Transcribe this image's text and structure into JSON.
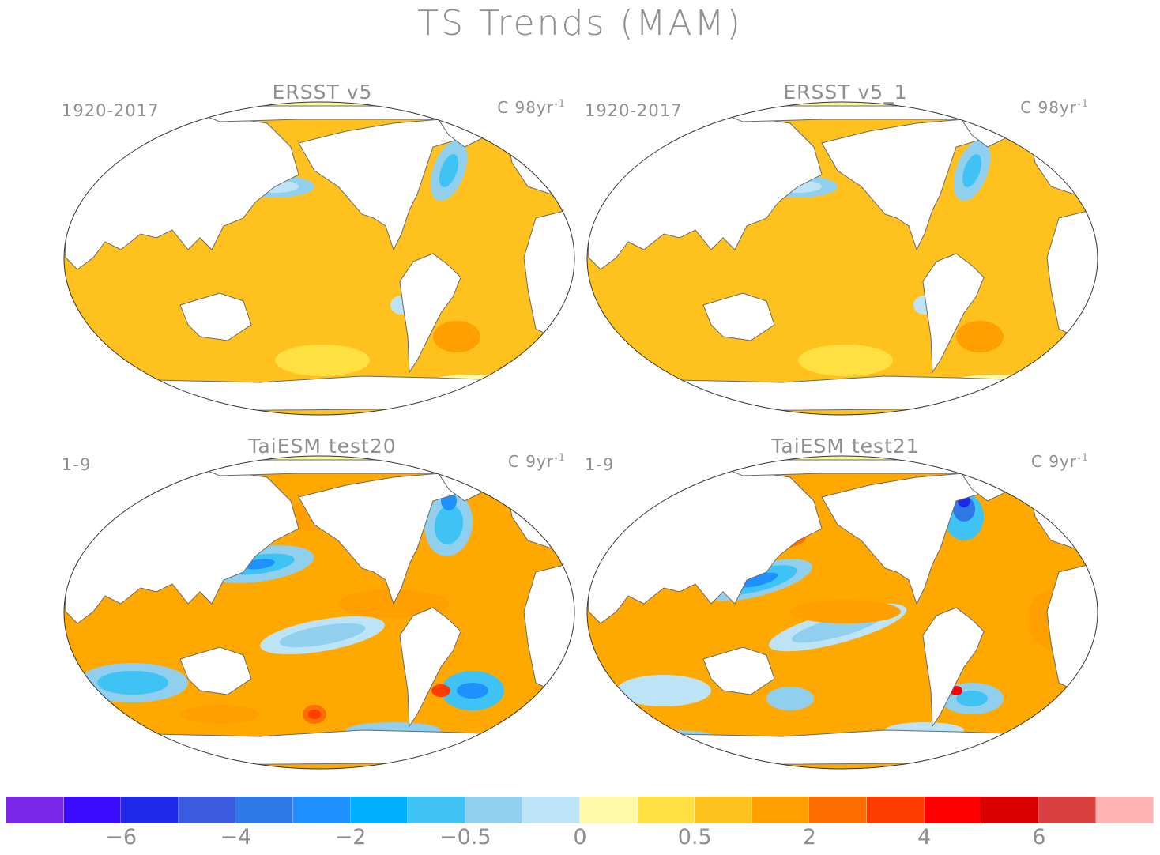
{
  "title": "TS Trends (MAM)",
  "panels": [
    {
      "title": "ERSST v5",
      "period": "1920-2017",
      "units_main": "C 98yr",
      "units_exp": "-1",
      "style": "obs"
    },
    {
      "title": "ERSST v5_1",
      "period": "1920-2017",
      "units_main": "C 98yr",
      "units_exp": "-1",
      "style": "obs"
    },
    {
      "title": "TaiESM test20",
      "period": "1-9",
      "units_main": "C 9yr",
      "units_exp": "-1",
      "style": "model1"
    },
    {
      "title": "TaiESM test21",
      "period": "1-9",
      "units_main": "C 9yr",
      "units_exp": "-1",
      "style": "model2"
    }
  ],
  "colorbar": {
    "colors": [
      "#7b26e8",
      "#3b0bff",
      "#1f28e8",
      "#3a5ae0",
      "#2f78e8",
      "#1e90ff",
      "#00b0ff",
      "#3fc3f5",
      "#90d0ee",
      "#bde3f6",
      "#fff8a6",
      "#ffe040",
      "#ffc11e",
      "#ff9f00",
      "#ff6e00",
      "#ff3c00",
      "#ff0000",
      "#d80000",
      "#d84040",
      "#ffb4b4"
    ],
    "labels": [
      "−6",
      "−4",
      "−2",
      "−0.5",
      "0",
      "0.5",
      "2",
      "4",
      "6"
    ]
  },
  "chart_data": {
    "type": "heatmap",
    "title": "TS Trends (MAM)",
    "projection": "Robinson (global map)",
    "colorbar_levels": [
      "<-6",
      "-6",
      "-5",
      "-4",
      "-3",
      "-2",
      "-1",
      "-0.5",
      "-0.25",
      "0",
      "0.25",
      "0.5",
      "1",
      "2",
      "3",
      "4",
      "5",
      "6",
      ">6"
    ],
    "colorbar_tick_labels": [
      "-6",
      "-4",
      "-2",
      "-0.5",
      "0",
      "0.5",
      "2",
      "4",
      "6"
    ],
    "panels": [
      {
        "name": "ERSST v5",
        "period": "1920-2017",
        "units": "C 98yr-1",
        "dominant_range": [
          0.5,
          1
        ],
        "notes": "broad warming; weak cooling in N. Pacific and subpolar N. Atlantic"
      },
      {
        "name": "ERSST v5_1",
        "period": "1920-2017",
        "units": "C 98yr-1",
        "dominant_range": [
          0.5,
          1
        ],
        "notes": "nearly identical to ERSST v5"
      },
      {
        "name": "TaiESM test20",
        "period": "1-9",
        "units": "C 9yr-1",
        "dominant_range": [
          1,
          2
        ],
        "notes": "cooling bands in mid-latitude N. Pacific, S. Pacific and Southern Ocean; warming east Pacific"
      },
      {
        "name": "TaiESM test21",
        "period": "1-9",
        "units": "C 9yr-1",
        "dominant_range": [
          1,
          2
        ],
        "notes": "cooling in NW Pacific and subpolar N. Atlantic; strong warming Kuroshio extension"
      }
    ]
  }
}
